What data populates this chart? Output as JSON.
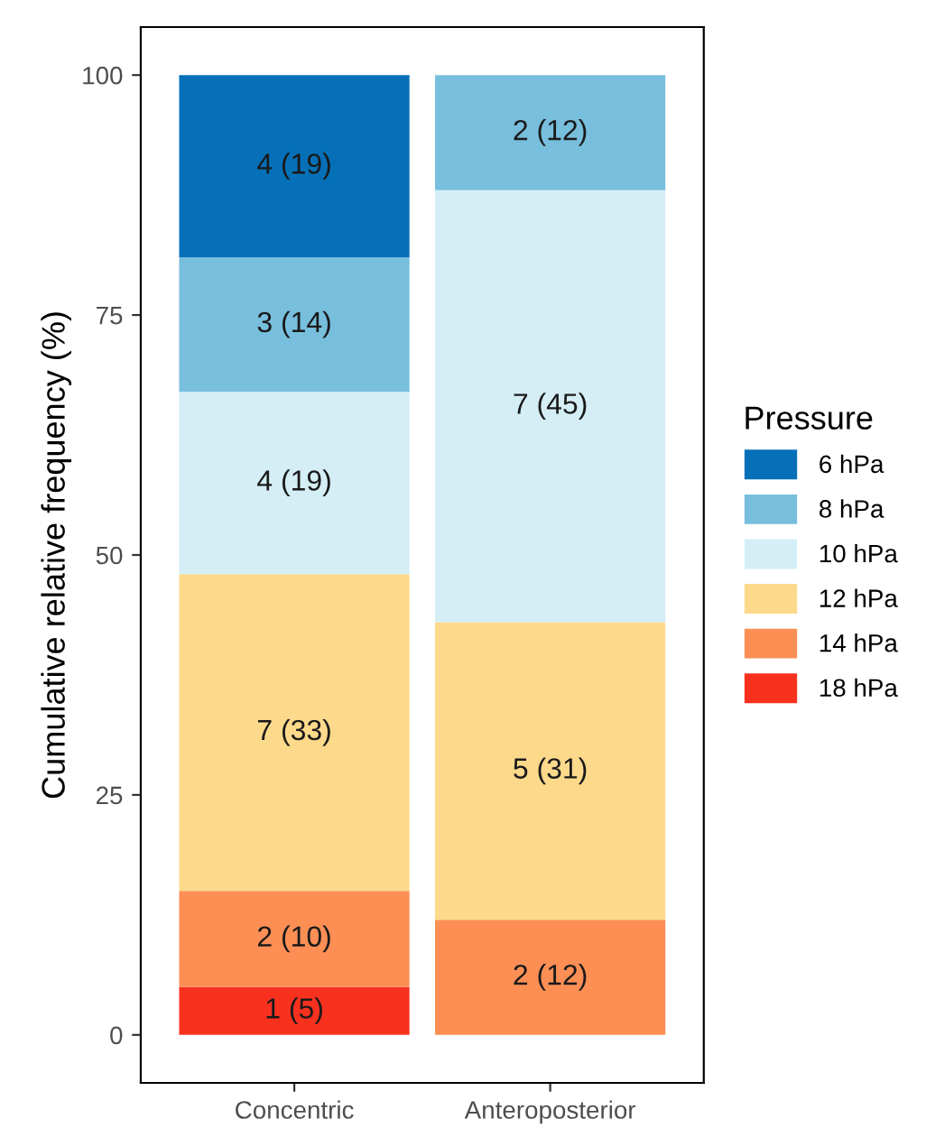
{
  "chart_data": {
    "type": "bar",
    "stacked": true,
    "ylabel": "Cumulative relative frequency (%)",
    "legend_title": "Pressure",
    "legend": "right",
    "grid": false,
    "categories": [
      "Concentric",
      "Anteroposterior"
    ],
    "ylim": [
      -5,
      105
    ],
    "yticks": [
      0,
      25,
      50,
      75,
      100
    ],
    "series": [
      {
        "name": "18 hPa",
        "color": "#f8311f",
        "values": [
          5,
          null
        ],
        "value_labels": [
          "1 (5)",
          null
        ]
      },
      {
        "name": "14 hPa",
        "color": "#fd8f55",
        "values": [
          10,
          12
        ],
        "value_labels": [
          "2 (10)",
          "2 (12)"
        ]
      },
      {
        "name": "12 hPa",
        "color": "#fdd98b",
        "values": [
          33,
          31
        ],
        "value_labels": [
          "7 (33)",
          "5 (31)"
        ]
      },
      {
        "name": "10 hPa",
        "color": "#d5eef6",
        "values": [
          19,
          45
        ],
        "value_labels": [
          "4 (19)",
          "7 (45)"
        ]
      },
      {
        "name": "8 hPa",
        "color": "#78bedd",
        "values": [
          14,
          12
        ],
        "value_labels": [
          "3 (14)",
          "2 (12)"
        ]
      },
      {
        "name": "6 hPa",
        "color": "#0570b8",
        "values": [
          19,
          null
        ],
        "value_labels": [
          "4 (19)",
          null
        ]
      }
    ]
  }
}
